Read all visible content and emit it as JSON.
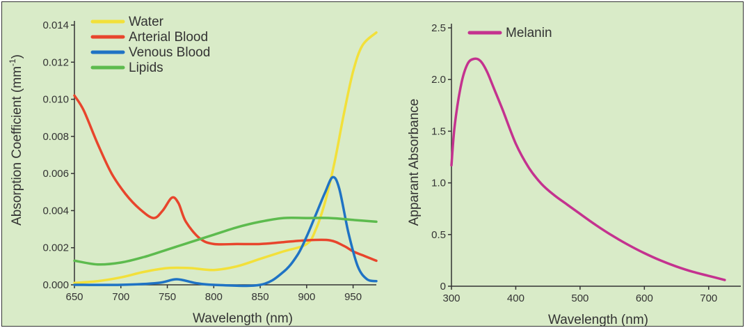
{
  "chart_data": [
    {
      "type": "line",
      "title": "",
      "xlabel": "Wavelength (nm)",
      "ylabel": "Absorption Coefficient (mm",
      "ylabel_sup": "-1",
      "ylabel_close": ")",
      "xlim": [
        650,
        975
      ],
      "ylim": [
        0,
        0.014
      ],
      "xticks": [
        650,
        700,
        750,
        800,
        850,
        900,
        950
      ],
      "yticks": [
        "0.000",
        "0.002",
        "0.004",
        "0.006",
        "0.008",
        "0.010",
        "0.012",
        "0.014"
      ],
      "legend_position": "top-left",
      "grid": false,
      "series": [
        {
          "name": "Water",
          "color": "#f2e03a",
          "x": [
            650,
            675,
            700,
            725,
            750,
            775,
            800,
            825,
            850,
            875,
            900,
            910,
            920,
            930,
            940,
            950,
            960,
            975
          ],
          "y": [
            0.0001,
            0.0002,
            0.0004,
            0.0007,
            0.0009,
            0.0009,
            0.0008,
            0.001,
            0.0014,
            0.0018,
            0.0022,
            0.003,
            0.0045,
            0.0066,
            0.0092,
            0.0115,
            0.0129,
            0.0136
          ]
        },
        {
          "name": "Arterial Blood",
          "color": "#e8452c",
          "x": [
            650,
            660,
            675,
            690,
            705,
            720,
            735,
            745,
            755,
            762,
            770,
            785,
            800,
            825,
            850,
            875,
            900,
            925,
            940,
            950,
            960,
            975
          ],
          "y": [
            0.0102,
            0.0094,
            0.0076,
            0.006,
            0.0049,
            0.0041,
            0.0036,
            0.004,
            0.0047,
            0.0044,
            0.0034,
            0.0025,
            0.0022,
            0.0022,
            0.0022,
            0.0023,
            0.0024,
            0.0024,
            0.0021,
            0.0018,
            0.0016,
            0.0013
          ]
        },
        {
          "name": "Venous Blood",
          "color": "#1f73c4",
          "x": [
            650,
            700,
            740,
            760,
            780,
            800,
            850,
            875,
            890,
            900,
            910,
            920,
            928,
            935,
            945,
            955,
            965,
            975
          ],
          "y": [
            0.0,
            0.0,
            0.0001,
            0.0003,
            0.0001,
            0.0,
            0.0,
            0.0007,
            0.0016,
            0.0026,
            0.0038,
            0.005,
            0.0058,
            0.0052,
            0.0028,
            0.001,
            0.0003,
            0.0002
          ]
        },
        {
          "name": "Lipids",
          "color": "#5dbb4e",
          "x": [
            650,
            675,
            700,
            725,
            750,
            775,
            800,
            825,
            850,
            875,
            900,
            925,
            950,
            975
          ],
          "y": [
            0.0013,
            0.0011,
            0.0012,
            0.0015,
            0.0019,
            0.0023,
            0.0027,
            0.0031,
            0.0034,
            0.0036,
            0.0036,
            0.0036,
            0.0035,
            0.0034
          ]
        }
      ]
    },
    {
      "type": "line",
      "title": "",
      "xlabel": "Wavelength (nm)",
      "ylabel": "Apparant Absorbance",
      "xlim": [
        300,
        750
      ],
      "ylim": [
        0,
        2.5
      ],
      "xticks": [
        300,
        400,
        500,
        600,
        700
      ],
      "yticks": [
        "0",
        "0.5",
        "1.0",
        "1.5",
        "2.0",
        "2.5"
      ],
      "legend_position": "top-left",
      "grid": false,
      "series": [
        {
          "name": "Melanin",
          "color": "#c4328f",
          "x": [
            300,
            305,
            315,
            325,
            335,
            345,
            355,
            365,
            380,
            400,
            420,
            440,
            460,
            480,
            500,
            525,
            550,
            575,
            600,
            625,
            650,
            675,
            700,
            725
          ],
          "y": [
            1.17,
            1.55,
            1.95,
            2.15,
            2.2,
            2.18,
            2.08,
            1.93,
            1.7,
            1.38,
            1.15,
            0.99,
            0.88,
            0.79,
            0.7,
            0.59,
            0.49,
            0.4,
            0.32,
            0.25,
            0.19,
            0.14,
            0.1,
            0.06
          ]
        }
      ]
    }
  ]
}
